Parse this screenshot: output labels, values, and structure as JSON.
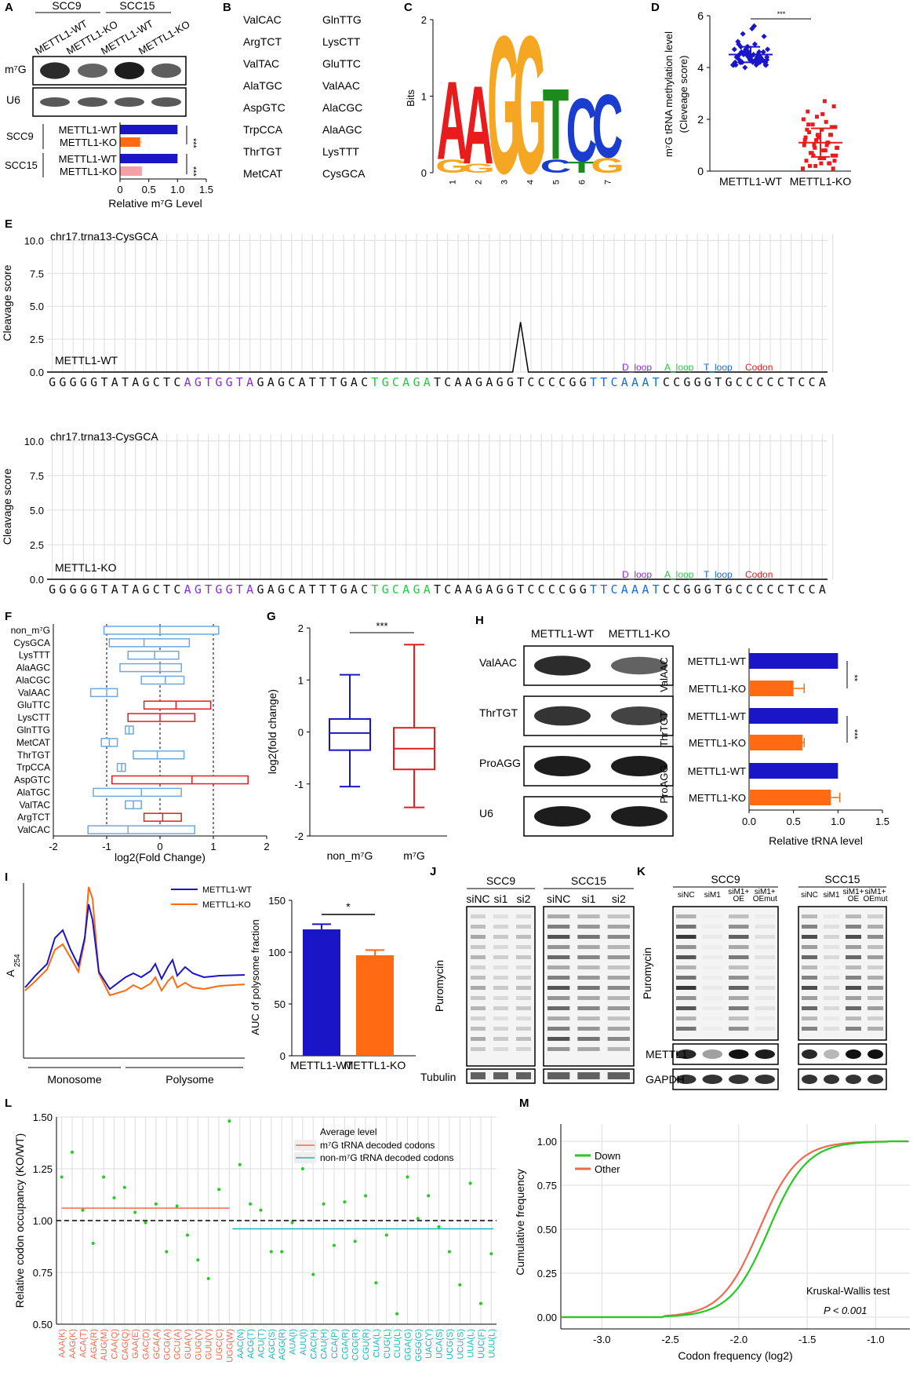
{
  "panel_letters": {
    "A": "A",
    "B": "B",
    "C": "C",
    "D": "D",
    "E": "E",
    "F": "F",
    "G": "G",
    "H": "H",
    "I": "I",
    "J": "J",
    "K": "K",
    "L": "L",
    "M": "M"
  },
  "colors": {
    "blue": "#1a16c8",
    "orange": "#ff6a13",
    "pink": "#f4a0a8",
    "red": "#e81c1c",
    "lightblue": "#6fa8dc",
    "green": "#22cc22",
    "cyan": "#19b5c0",
    "salmon": "#f06a50",
    "grid": "#dddddd"
  },
  "panelA": {
    "cell_lines": [
      "SCC9",
      "SCC15"
    ],
    "lanes": [
      "METTL1-WT",
      "METTL1-KO",
      "METTL1-WT",
      "METTL1-KO"
    ],
    "blot_labels": [
      "m⁷G",
      "U6"
    ],
    "sig": "***"
  },
  "panelB": {
    "col1": [
      "ValCAC",
      "ArgTCT",
      "ValTAC",
      "AlaTGC",
      "AspGTC",
      "TrpCCA",
      "ThrTGT",
      "MetCAT"
    ],
    "col2": [
      "GlnTTG",
      "LysCTT",
      "GluTTC",
      "ValAAC",
      "AlaCGC",
      "AlaAGC",
      "LysTTT",
      "CysGCA"
    ]
  },
  "panelC": {
    "ylabel": "Bits",
    "yticks": [
      "0",
      "1",
      "2"
    ],
    "positions": [
      "1",
      "2",
      "3",
      "4",
      "5",
      "6",
      "7"
    ],
    "main": [
      "A",
      "A",
      "G",
      "G",
      "T",
      "C",
      "C"
    ],
    "main_colors": [
      "#e81c1c",
      "#e81c1c",
      "#f5a623",
      "#f5a623",
      "#1c8a1c",
      "#1a3ccf",
      "#1a3ccf"
    ],
    "main_heights": [
      1.05,
      1.05,
      1.85,
      1.85,
      0.95,
      0.85,
      0.85
    ],
    "minor": [
      "G",
      "G",
      "",
      "",
      "C",
      "T",
      "G"
    ],
    "minor_colors": [
      "#f5a623",
      "#f5a623",
      "",
      "",
      "#1a3ccf",
      "#1c8a1c",
      "#f5a623"
    ],
    "minor_heights": [
      0.18,
      0.12,
      0,
      0,
      0.18,
      0.15,
      0.2
    ]
  },
  "panelE": {
    "plots": [
      {
        "title": "chr17.trna13-CysGCA",
        "tag": "METTL1-WT",
        "peak": 3.8
      },
      {
        "title": "chr17.trna13-CysGCA",
        "tag": "METTL1-KO",
        "peak": 0
      }
    ],
    "ylabel": "Cleavage score",
    "yticks": [
      "0.0",
      "2.5",
      "5.0",
      "7.5",
      "10.0"
    ],
    "legend": [
      "D_loop",
      "A_loop",
      "T_loop",
      "Codon"
    ],
    "sequence": "GGGGGTATAGCTCAGTGGTAGAGCATTTGACTGCAGATCAAGAGGTCCCCGGTTCAAATCCGGGTGCCCCCTCCA"
  },
  "panelF": {
    "xlabel": "log2(Fold Change)",
    "xticks": [
      "-2",
      "-1",
      "0",
      "1",
      "2"
    ],
    "rows": [
      "non_m⁷G",
      "CysGCA",
      "LysTTT",
      "AlaAGC",
      "AlaCGC",
      "ValAAC",
      "GluTTC",
      "LysCTT",
      "GlnTTG",
      "MetCAT",
      "ThrTGT",
      "TrpCCA",
      "AspGTC",
      "AlaTGC",
      "ValTAC",
      "ArgTCT",
      "ValCAC"
    ]
  },
  "panelG": {
    "ylabel": "log2(fold change)",
    "categories": [
      "non_m⁷G",
      "m⁷G"
    ],
    "yticks": [
      "-2",
      "-1",
      "0",
      "1",
      "2"
    ],
    "sig": "***"
  },
  "panelH": {
    "columns": [
      "METTL1-WT",
      "METTL1-KO"
    ],
    "blots": [
      "ValAAC",
      "ThrTGT",
      "ProAGG",
      "U6"
    ],
    "groups": [
      "ValAAC",
      "ThrTGT",
      "ProAGG"
    ],
    "bar_labels": [
      "METTL1-WT",
      "METTL1-KO"
    ],
    "xlabel": "Relative tRNA level",
    "xticks": [
      "0.0",
      "0.5",
      "1.0",
      "1.5"
    ],
    "sig": [
      "**",
      "***"
    ]
  },
  "panelI": {
    "ylabel": "A",
    "ylabel_sub": "254",
    "legend": [
      "METTL1-WT",
      "METTL1-KO"
    ],
    "fractions": [
      "Monosome",
      "Polysome"
    ],
    "bar_ylabel": "AUC of polysome fraction",
    "bar_yticks": [
      "0",
      "50",
      "100",
      "150"
    ],
    "bar_categories": [
      "METTL1-WT",
      "METTL1-KO"
    ],
    "sig": "*"
  },
  "panelJ": {
    "cell_lines": [
      "SCC9",
      "SCC15"
    ],
    "lanes": [
      "siNC",
      "si1",
      "si2"
    ],
    "ylabel": "Puromycin",
    "loading": "Tubulin"
  },
  "panelK": {
    "cell_lines": [
      "SCC9",
      "SCC15"
    ],
    "lanes": [
      "siNC",
      "siM1",
      "siM1+ OE",
      "siM1+ OEmut"
    ],
    "ylabel": "Puromycin",
    "rows": [
      "METTL1",
      "GAPDH"
    ]
  },
  "panelL": {
    "ylabel": "Relative codon occupancy (KO/WT)",
    "yticks": [
      "0.50",
      "0.75",
      "1.00",
      "1.25",
      "1.50"
    ],
    "legend_title": "Average level",
    "legend": [
      "m⁷G tRNA decoded codons",
      "non-m⁷G tRNA decoded codons"
    ],
    "codons": [
      "AAA(K)",
      "AAG(K)",
      "ACA(T)",
      "AGA(R)",
      "AUG(M)",
      "CAA(Q)",
      "CAG(Q)",
      "GAA(E)",
      "GAC(D)",
      "GCA(A)",
      "GCG(A)",
      "GCU(A)",
      "GUA(V)",
      "GUG(V)",
      "GUU(V)",
      "UGC(C)",
      "UGG(W)",
      "AAC(N)",
      "ACG(T)",
      "ACU(T)",
      "AGC(S)",
      "AGG(R)",
      "AUA(I)",
      "AUU(I)",
      "CAC(H)",
      "CAU(H)",
      "CCA(P)",
      "CGA(R)",
      "CGG(R)",
      "CGU(R)",
      "CUA(L)",
      "CUG(L)",
      "CUU(L)",
      "GGA(G)",
      "GGG(G)",
      "UAC(Y)",
      "UCA(S)",
      "UCG(S)",
      "UCU(S)",
      "UUA(L)",
      "UUC(F)",
      "UUU(L)"
    ]
  },
  "panelM": {
    "ylabel": "Cumulative frequency",
    "xlabel": "Codon frequency (log2)",
    "yticks": [
      "0.00",
      "0.25",
      "0.50",
      "0.75",
      "1.00"
    ],
    "xticks": [
      "-3.0",
      "-2.5",
      "-2.0",
      "-1.5",
      "-1.0"
    ],
    "legend": [
      "Down",
      "Other"
    ],
    "test": "Kruskal-Wallis test",
    "pval": "P < 0.001"
  },
  "chart_data": [
    {
      "type": "bar",
      "categories": [
        "SCC9 METTL1-WT",
        "SCC9 METTL1-KO",
        "SCC15 METTL1-WT",
        "SCC15 METTL1-KO"
      ],
      "values": [
        1.0,
        0.35,
        1.0,
        0.38
      ],
      "errors": [
        0,
        0.03,
        0,
        0
      ],
      "xlabel": "Relative m⁷G Level",
      "xlim": [
        0,
        1.5
      ],
      "xticks": [
        "0",
        "0.5",
        "1.0",
        "1.5"
      ]
    },
    {
      "type": "scatter",
      "categories": [
        "METTL1-WT",
        "METTL1-KO"
      ],
      "ylabel": "m⁷G tRNA methylation level",
      "ylabel2": "(Cleveage score)",
      "yticks": [
        "0",
        "2",
        "4",
        "6"
      ],
      "ylim": [
        0,
        6
      ],
      "means": [
        4.5,
        1.1
      ],
      "sd": [
        0.3,
        0.55
      ],
      "sig": "***",
      "wt": [
        4.1,
        4.2,
        4.3,
        4.2,
        4.4,
        4.5,
        4.6,
        4.3,
        4.2,
        4.1,
        4.8,
        5.0,
        5.2,
        4.9,
        4.7,
        4.4,
        4.3,
        4.5,
        4.6,
        4.2,
        4.3,
        5.5,
        5.3,
        4.1,
        4.2,
        4.4,
        4.6,
        4.7,
        4.3,
        4.5,
        4.2,
        4.1,
        4.4,
        4.8,
        4.9,
        4.2,
        4.3,
        4.5,
        4.4,
        4.6,
        5.6,
        4.0,
        4.1,
        4.3,
        4.2,
        4.5,
        4.7,
        4.4,
        4.3,
        4.2,
        4.1,
        4.6,
        4.5,
        4.8,
        4.3,
        4.2,
        4.4,
        4.5,
        4.1,
        4.2
      ],
      "ko": [
        0.1,
        0.3,
        0.5,
        0.7,
        0.9,
        1.1,
        1.3,
        1.5,
        1.7,
        1.9,
        2.1,
        2.3,
        2.5,
        2.7,
        0.2,
        0.4,
        0.6,
        0.8,
        1.0,
        1.2,
        1.4,
        1.6,
        1.8,
        2.0,
        0.3,
        0.5,
        0.7,
        0.9,
        1.1,
        1.3,
        0.2,
        0.6,
        1.0,
        1.4,
        1.8,
        0.4,
        0.8,
        1.2,
        1.6,
        0.1,
        0.5,
        0.9,
        1.3,
        1.7,
        2.2,
        0.6,
        1.0,
        1.4,
        0.3,
        0.7
      ]
    },
    {
      "type": "bar",
      "series": [
        {
          "name": "non_m⁷G",
          "lo": [
            -1.05,
            1.1
          ]
        }
      ],
      "categories": [
        "non_m⁷G",
        "CysGCA",
        "LysTTT",
        "AlaAGC",
        "AlaCGC",
        "ValAAC",
        "GluTTC",
        "LysCTT",
        "GlnTTG",
        "MetCAT",
        "ThrTGT",
        "TrpCCA",
        "AspGTC",
        "AlaTGC",
        "ValTAC",
        "ArgTCT",
        "ValCAC"
      ],
      "ranges": [
        [
          -1.05,
          1.1
        ],
        [
          -0.95,
          0.55
        ],
        [
          -0.6,
          0.35
        ],
        [
          -0.75,
          0.4
        ],
        [
          -0.35,
          0.45
        ],
        [
          -1.3,
          -0.8
        ],
        [
          -0.3,
          0.95
        ],
        [
          -0.6,
          0.65
        ],
        [
          -0.65,
          -0.5
        ],
        [
          -1.1,
          -0.8
        ],
        [
          -0.5,
          0.45
        ],
        [
          -0.8,
          -0.65
        ],
        [
          -0.9,
          1.65
        ],
        [
          -1.25,
          0.4
        ],
        [
          -0.65,
          -0.35
        ],
        [
          -0.3,
          0.4
        ],
        [
          -1.35,
          0.65
        ]
      ],
      "medians": [
        0.0,
        -0.3,
        -0.1,
        0.0,
        0.1,
        -1.0,
        0.3,
        0.0,
        -0.58,
        -0.95,
        -0.05,
        -0.72,
        0.6,
        -0.35,
        -0.5,
        0.05,
        -0.6
      ],
      "m7g": [
        false,
        false,
        false,
        false,
        false,
        false,
        true,
        true,
        false,
        false,
        false,
        false,
        true,
        false,
        false,
        true,
        false
      ],
      "xlim": [
        -2,
        2
      ]
    },
    {
      "type": "box",
      "categories": [
        "non_m⁷G",
        "m⁷G"
      ],
      "stats": [
        {
          "min": -1.05,
          "q1": -0.35,
          "median": -0.02,
          "q3": 0.25,
          "max": 1.1
        },
        {
          "min": -1.45,
          "q1": -0.72,
          "median": -0.32,
          "q3": 0.08,
          "max": 1.68
        }
      ],
      "ylim": [
        -2,
        2
      ]
    },
    {
      "type": "bar",
      "categories": [
        "ValAAC METTL1-WT",
        "ValAAC METTL1-KO",
        "ThrTGT METTL1-WT",
        "ThrTGT METTL1-KO",
        "ProAGG METTL1-WT",
        "ProAGG METTL1-KO"
      ],
      "values": [
        1.0,
        0.5,
        1.0,
        0.6,
        1.0,
        0.92
      ],
      "errors": [
        0,
        0.12,
        0,
        0.02,
        0,
        0.1
      ],
      "xlim": [
        0,
        1.5
      ]
    },
    {
      "type": "line",
      "series": [
        {
          "name": "METTL1-WT"
        },
        {
          "name": "METTL1-KO"
        }
      ],
      "fractions": [
        "Monosome",
        "Polysome"
      ]
    },
    {
      "type": "bar",
      "categories": [
        "METTL1-WT",
        "METTL1-KO"
      ],
      "values": [
        122,
        97
      ],
      "errors": [
        5,
        5
      ],
      "ylim": [
        0,
        150
      ]
    },
    {
      "type": "scatter",
      "ylim": [
        0.5,
        1.5
      ],
      "values": [
        1.21,
        1.33,
        1.05,
        0.89,
        1.21,
        1.11,
        1.16,
        1.04,
        0.99,
        1.08,
        0.85,
        1.07,
        0.93,
        0.81,
        0.72,
        1.15,
        1.48,
        1.27,
        1.08,
        1.05,
        0.85,
        0.85,
        0.99,
        1.25,
        0.74,
        1.08,
        0.88,
        1.09,
        0.9,
        1.12,
        0.7,
        0.93,
        0.55,
        1.21,
        1.01,
        1.12,
        0.97,
        0.85,
        0.69,
        1.18,
        0.6,
        0.84
      ],
      "avg_m7g": 1.06,
      "avg_non_m7g": 0.96
    },
    {
      "type": "line",
      "series": [
        {
          "name": "Down",
          "x50": -1.78
        },
        {
          "name": "Other",
          "x50": -1.85
        }
      ],
      "xlim": [
        -3.3,
        -0.75
      ],
      "ylim": [
        0,
        1
      ]
    }
  ]
}
